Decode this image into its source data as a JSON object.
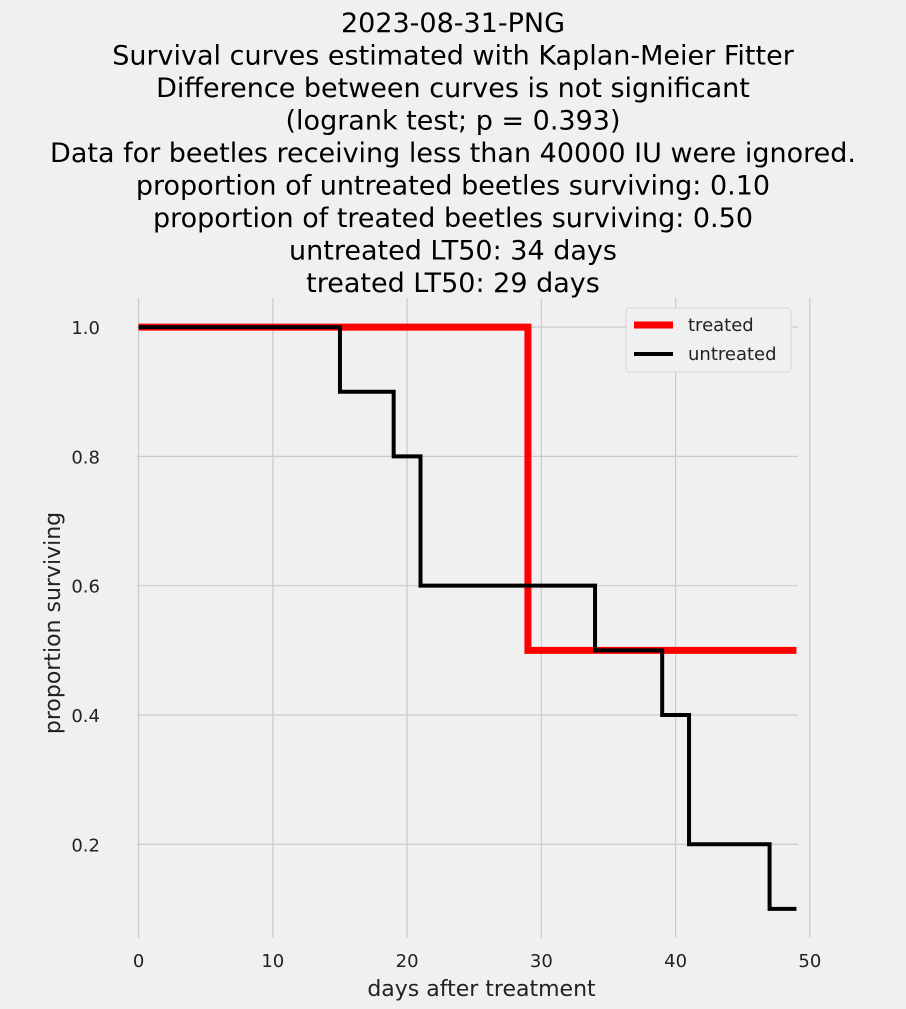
{
  "chart_data": {
    "type": "line",
    "step": "post",
    "title_lines": [
      "2023-08-31-PNG",
      "Survival curves estimated with Kaplan-Meier Fitter",
      "Difference between curves is not significant",
      "(logrank test; p = 0.393)",
      "Data for beetles receiving less than 40000 IU were ignored.",
      "proportion of untreated beetles surviving: 0.10",
      "proportion of treated beetles surviving: 0.50",
      "untreated LT50: 34 days",
      "treated LT50: 29 days"
    ],
    "xlabel": "days after treatment",
    "ylabel": "proportion surviving",
    "xlim": [
      -2.5,
      51.5
    ],
    "ylim": [
      0.055,
      1.045
    ],
    "xticks": [
      0,
      10,
      20,
      30,
      40,
      50
    ],
    "xtick_labels": [
      "0",
      "10",
      "20",
      "30",
      "40",
      "50"
    ],
    "yticks": [
      0.2,
      0.4,
      0.6,
      0.8,
      1.0
    ],
    "ytick_labels": [
      "0.2",
      "0.4",
      "0.6",
      "0.8",
      "1.0"
    ],
    "grid": true,
    "legend_position": "top-right",
    "series": [
      {
        "name": "treated",
        "color": "#ff0000",
        "x": [
          0,
          29,
          49
        ],
        "y": [
          1.0,
          0.5,
          0.5
        ]
      },
      {
        "name": "untreated",
        "color": "#000000",
        "x": [
          0,
          15,
          19,
          21,
          34,
          39,
          41,
          47,
          49
        ],
        "y": [
          1.0,
          0.9,
          0.8,
          0.6,
          0.5,
          0.4,
          0.2,
          0.1,
          0.1
        ]
      }
    ],
    "background_color": "#f0f0f0",
    "grid_color": "#cbcbcb"
  }
}
